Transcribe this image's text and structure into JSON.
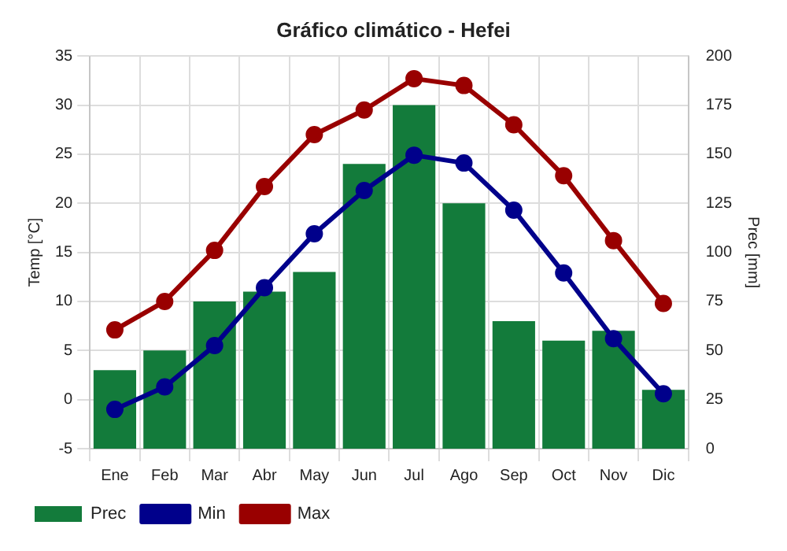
{
  "chart_data": {
    "type": "bar",
    "title": "Gráfico climático - Hefei",
    "ylabel": "Temp [°C]",
    "y2label": "Prec [mm]",
    "categories": [
      "Ene",
      "Feb",
      "Mar",
      "Abr",
      "May",
      "Jun",
      "Jul",
      "Ago",
      "Sep",
      "Oct",
      "Nov",
      "Dic"
    ],
    "series": [
      {
        "name": "Prec",
        "axis": "y2",
        "color": "#137b3b",
        "values": [
          40,
          50,
          75,
          80,
          90,
          145,
          175,
          125,
          65,
          55,
          60,
          30
        ]
      },
      {
        "name": "Min",
        "type": "line",
        "axis": "y",
        "color": "#00008b",
        "values": [
          -1,
          1.3,
          5.5,
          11.4,
          16.9,
          21.3,
          24.9,
          24.1,
          19.3,
          12.9,
          6.2,
          0.6
        ]
      },
      {
        "name": "Max",
        "type": "line",
        "axis": "y",
        "color": "#990000",
        "values": [
          7.1,
          10,
          15.2,
          21.7,
          27,
          29.5,
          32.7,
          32,
          28,
          22.8,
          16.2,
          9.8
        ]
      }
    ],
    "ylim": [
      -5,
      35
    ],
    "yticks": [
      -5,
      0,
      5,
      10,
      15,
      20,
      25,
      30,
      35
    ],
    "y2lim": [
      0,
      200
    ],
    "y2ticks": [
      0,
      25,
      50,
      75,
      100,
      125,
      150,
      175,
      200
    ],
    "grid": true,
    "legend": "bottom left",
    "marker": "circle",
    "line_style": "solid"
  }
}
